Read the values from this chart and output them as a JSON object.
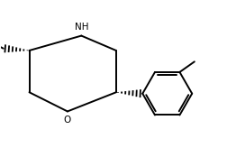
{
  "bg_color": "#ffffff",
  "line_color": "#000000",
  "line_width": 1.4,
  "font_size_nh": 7.5,
  "font_size_o": 7.5
}
